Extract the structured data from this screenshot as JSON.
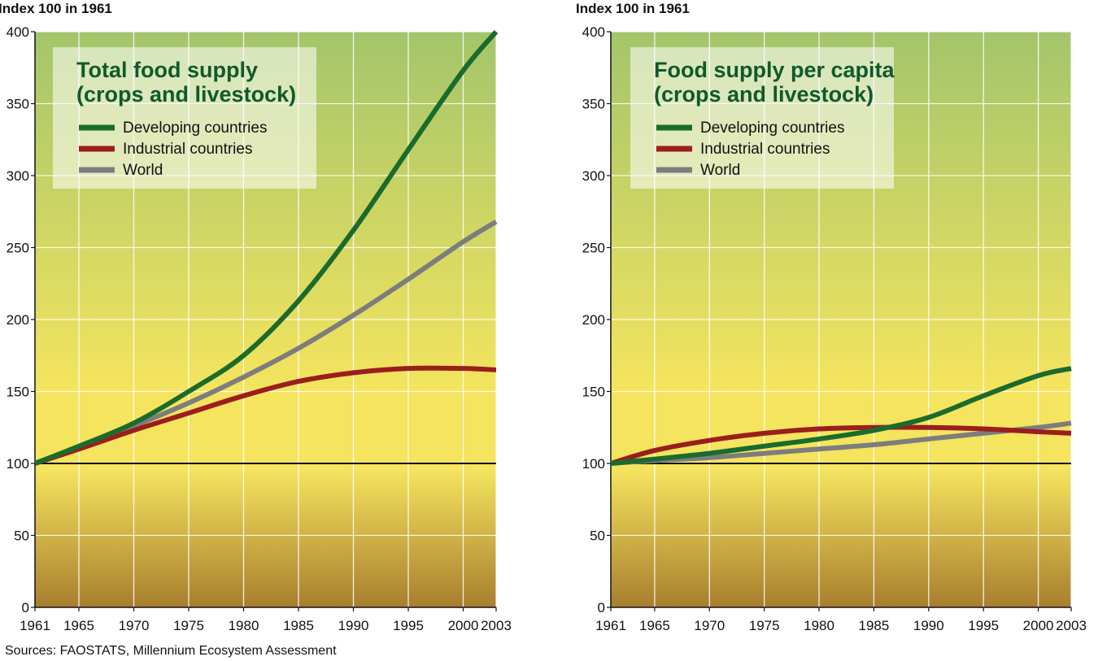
{
  "source_note": "Sources: FAOSTATS, Millennium Ecosystem Assessment",
  "colors": {
    "developing": "#1a6b2c",
    "industrial": "#9a1e1e",
    "world": "#7d7d7d",
    "title": "#0f5a2a",
    "bg_top": "#a3c56b",
    "bg_mid": "#f4e45e",
    "bg_bottom": "#a87e2e"
  },
  "chart_data": [
    {
      "type": "line",
      "title": "Total food supply\n(crops and livestock)",
      "ylabel": "Index 100 in 1961",
      "xlabel": "",
      "xlim": [
        1961,
        2003
      ],
      "ylim": [
        0,
        400
      ],
      "x_ticks": [
        1961,
        1965,
        1970,
        1975,
        1980,
        1985,
        1990,
        1995,
        2000,
        2003
      ],
      "y_ticks": [
        0,
        50,
        100,
        150,
        200,
        250,
        300,
        350,
        400
      ],
      "grid": true,
      "legend_position": "top-left",
      "baseline": 100,
      "x": [
        1961,
        1965,
        1970,
        1975,
        1980,
        1985,
        1990,
        1995,
        2000,
        2003
      ],
      "series": [
        {
          "name": "Developing countries",
          "color_key": "developing",
          "values": [
            100,
            112,
            128,
            150,
            175,
            213,
            262,
            318,
            373,
            400
          ]
        },
        {
          "name": "Industrial countries",
          "color_key": "industrial",
          "values": [
            100,
            110,
            123,
            135,
            147,
            157,
            163,
            166,
            166,
            165
          ]
        },
        {
          "name": "World",
          "color_key": "world",
          "values": [
            100,
            111,
            126,
            142,
            160,
            180,
            203,
            228,
            254,
            268
          ]
        }
      ]
    },
    {
      "type": "line",
      "title": "Food supply per capita\n(crops and livestock)",
      "ylabel": "Index 100 in 1961",
      "xlabel": "",
      "xlim": [
        1961,
        2003
      ],
      "ylim": [
        0,
        400
      ],
      "x_ticks": [
        1961,
        1965,
        1970,
        1975,
        1980,
        1985,
        1990,
        1995,
        2000,
        2003
      ],
      "y_ticks": [
        0,
        50,
        100,
        150,
        200,
        250,
        300,
        350,
        400
      ],
      "grid": true,
      "legend_position": "top-left",
      "baseline": 100,
      "x": [
        1961,
        1965,
        1970,
        1975,
        1980,
        1985,
        1990,
        1995,
        2000,
        2003
      ],
      "series": [
        {
          "name": "Developing countries",
          "color_key": "developing",
          "values": [
            100,
            103,
            107,
            112,
            117,
            123,
            132,
            147,
            161,
            166
          ]
        },
        {
          "name": "Industrial countries",
          "color_key": "industrial",
          "values": [
            100,
            109,
            116,
            121,
            124,
            125,
            125,
            124,
            122,
            121
          ]
        },
        {
          "name": "World",
          "color_key": "world",
          "values": [
            100,
            102,
            104,
            107,
            110,
            113,
            117,
            121,
            125,
            128
          ]
        }
      ]
    }
  ]
}
